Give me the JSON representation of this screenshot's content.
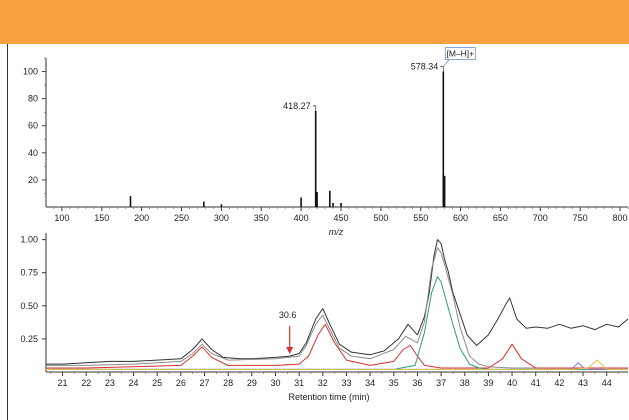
{
  "colors": {
    "header": "#f7a041",
    "ms_peaks": "#111111",
    "trace_black": "#333333",
    "trace_gray": "#8a8a8a",
    "trace_red": "#d9302f",
    "trace_green": "#2e9a7a",
    "trace_purple": "#8a78c8",
    "trace_yellow": "#e3c24a",
    "arrow": "#d9302f",
    "ion_label_border": "#6f8fcf"
  },
  "chart_data": [
    {
      "type": "bar",
      "title": "",
      "xlabel": "m/z",
      "ylabel": "",
      "xlim": [
        80,
        810
      ],
      "ylim": [
        0,
        110
      ],
      "x_ticks": [
        "100",
        "150",
        "200",
        "250",
        "300",
        "350",
        "400",
        "450",
        "500",
        "550",
        "600",
        "650",
        "700",
        "750",
        "800"
      ],
      "y_ticks": [
        "20",
        "40",
        "60",
        "80",
        "100"
      ],
      "peaks": [
        {
          "mz": 186,
          "intensity": 8
        },
        {
          "mz": 278,
          "intensity": 4
        },
        {
          "mz": 300,
          "intensity": 2
        },
        {
          "mz": 400,
          "intensity": 7
        },
        {
          "mz": 418.27,
          "intensity": 71
        },
        {
          "mz": 420,
          "intensity": 11
        },
        {
          "mz": 436,
          "intensity": 12
        },
        {
          "mz": 440,
          "intensity": 3
        },
        {
          "mz": 450,
          "intensity": 3
        },
        {
          "mz": 578.34,
          "intensity": 100
        },
        {
          "mz": 580,
          "intensity": 23
        }
      ],
      "annotations": [
        {
          "label": "418.27",
          "mz": 418.27,
          "intensity": 71
        },
        {
          "label": "578.34",
          "mz": 578.34,
          "intensity": 100,
          "ion": "[M–H]+"
        }
      ]
    },
    {
      "type": "line",
      "title": "",
      "xlabel": "Retention time (min)",
      "ylabel": "",
      "xlim": [
        20.3,
        44.9
      ],
      "ylim": [
        0,
        1.05
      ],
      "x_ticks": [
        "21",
        "22",
        "23",
        "24",
        "25",
        "26",
        "27",
        "28",
        "29",
        "30",
        "31",
        "32",
        "33",
        "34",
        "35",
        "36",
        "37",
        "38",
        "39",
        "40",
        "41",
        "42",
        "43",
        "44"
      ],
      "y_ticks": [
        "0.25",
        "0.50",
        "0.75",
        "1.00"
      ],
      "series": [
        {
          "color": "#333333",
          "x": [
            20.3,
            21,
            22,
            23,
            24,
            25,
            26,
            26.5,
            26.9,
            27.3,
            27.8,
            28.5,
            29,
            30,
            30.6,
            31,
            31.3,
            31.7,
            32,
            32.3,
            32.7,
            33.2,
            34,
            34.6,
            35.2,
            35.6,
            35.8,
            36,
            36.3,
            36.5,
            36.7,
            36.85,
            37,
            37.15,
            37.3,
            37.5,
            37.8,
            38.1,
            38.5,
            39,
            39.4,
            39.7,
            39.9,
            40.2,
            40.6,
            41,
            41.5,
            42,
            42.5,
            43,
            43.5,
            44,
            44.5,
            44.9
          ],
          "y": [
            0.06,
            0.06,
            0.07,
            0.08,
            0.08,
            0.09,
            0.1,
            0.17,
            0.25,
            0.17,
            0.11,
            0.1,
            0.1,
            0.11,
            0.12,
            0.14,
            0.22,
            0.4,
            0.48,
            0.36,
            0.21,
            0.15,
            0.13,
            0.16,
            0.25,
            0.36,
            0.32,
            0.28,
            0.42,
            0.6,
            0.88,
            1.0,
            0.97,
            0.85,
            0.76,
            0.6,
            0.44,
            0.28,
            0.2,
            0.28,
            0.4,
            0.5,
            0.56,
            0.4,
            0.33,
            0.34,
            0.33,
            0.36,
            0.33,
            0.35,
            0.32,
            0.36,
            0.34,
            0.4
          ]
        },
        {
          "color": "#8a8a8a",
          "x": [
            20.3,
            22,
            24,
            26,
            26.5,
            26.9,
            27.3,
            28,
            30,
            31,
            31.3,
            31.7,
            32,
            32.3,
            32.7,
            33.2,
            34,
            35,
            35.5,
            35.8,
            36,
            36.3,
            36.6,
            36.85,
            37,
            37.2,
            37.5,
            37.8,
            38.2,
            38.6,
            39,
            40,
            41,
            42,
            43,
            44,
            44.9
          ],
          "y": [
            0.05,
            0.05,
            0.06,
            0.08,
            0.14,
            0.21,
            0.14,
            0.09,
            0.1,
            0.12,
            0.2,
            0.36,
            0.43,
            0.32,
            0.18,
            0.12,
            0.1,
            0.17,
            0.27,
            0.24,
            0.22,
            0.38,
            0.78,
            0.94,
            0.9,
            0.78,
            0.58,
            0.34,
            0.12,
            0.06,
            0.04,
            0.03,
            0.03,
            0.03,
            0.03,
            0.03,
            0.03
          ]
        },
        {
          "color": "#d9302f",
          "x": [
            20.3,
            22,
            24,
            26,
            26.5,
            26.9,
            27.3,
            28,
            30,
            31,
            31.4,
            31.8,
            32.1,
            32.5,
            33,
            34,
            35,
            35.4,
            35.7,
            36,
            36.3,
            37,
            38,
            39,
            39.6,
            40,
            40.4,
            41,
            42,
            43,
            44,
            44.9
          ],
          "y": [
            0.03,
            0.03,
            0.04,
            0.05,
            0.12,
            0.19,
            0.11,
            0.05,
            0.05,
            0.06,
            0.12,
            0.28,
            0.36,
            0.22,
            0.09,
            0.05,
            0.08,
            0.17,
            0.2,
            0.12,
            0.05,
            0.03,
            0.03,
            0.03,
            0.1,
            0.21,
            0.1,
            0.03,
            0.03,
            0.03,
            0.03,
            0.03
          ]
        },
        {
          "color": "#2e9a7a",
          "x": [
            20.3,
            30,
            35,
            35.9,
            36.3,
            36.6,
            36.85,
            37,
            37.2,
            37.5,
            37.8,
            38.2,
            38.6,
            39,
            40,
            44.9
          ],
          "y": [
            0.02,
            0.02,
            0.02,
            0.05,
            0.3,
            0.6,
            0.72,
            0.68,
            0.55,
            0.36,
            0.18,
            0.06,
            0.03,
            0.02,
            0.02,
            0.02
          ]
        },
        {
          "color": "#8a78c8",
          "x": [
            20.3,
            41,
            42.5,
            42.8,
            43.1,
            43.5,
            44.9
          ],
          "y": [
            0.02,
            0.02,
            0.02,
            0.07,
            0.02,
            0.02,
            0.02
          ]
        },
        {
          "color": "#e3c24a",
          "x": [
            20.3,
            42.5,
            43.2,
            43.6,
            44,
            44.9
          ],
          "y": [
            0.02,
            0.02,
            0.03,
            0.09,
            0.02,
            0.02
          ]
        }
      ],
      "annotations": [
        {
          "label": "30.6",
          "x": 30.6
        }
      ]
    }
  ]
}
